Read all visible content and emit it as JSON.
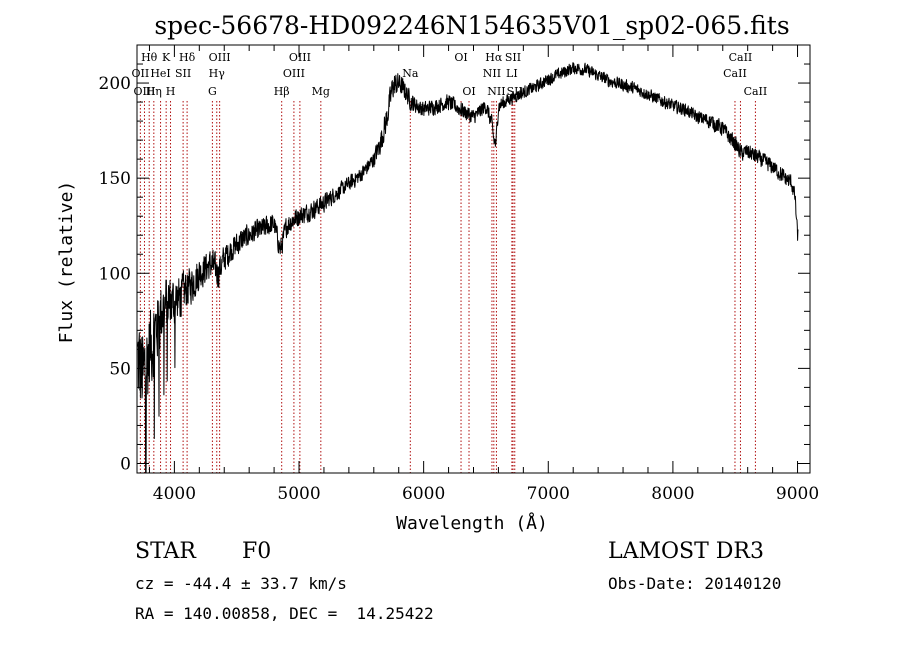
{
  "chart_data": {
    "type": "line",
    "title": "spec-56678-HD092246N154635V01_sp02-065.fits",
    "xlabel": "Wavelength (Å)",
    "ylabel": "Flux (relative)",
    "xlim": [
      3700,
      9100
    ],
    "ylim": [
      -5,
      220
    ],
    "x_ticks": [
      4000,
      5000,
      6000,
      7000,
      8000,
      9000
    ],
    "y_ticks": [
      0,
      50,
      100,
      150,
      200
    ],
    "x_tick_labels": [
      "4000",
      "5000",
      "6000",
      "7000",
      "8000",
      "9000"
    ],
    "y_tick_labels": [
      "0",
      "50",
      "100",
      "150",
      "200"
    ],
    "series": [
      {
        "name": "flux",
        "x": [
          3700,
          3750,
          3800,
          3850,
          3900,
          3950,
          4000,
          4050,
          4100,
          4150,
          4200,
          4250,
          4300,
          4350,
          4400,
          4450,
          4500,
          4550,
          4600,
          4650,
          4700,
          4750,
          4800,
          4850,
          4900,
          4950,
          5000,
          5100,
          5200,
          5300,
          5400,
          5500,
          5600,
          5650,
          5700,
          5750,
          5800,
          5850,
          5900,
          5950,
          6000,
          6100,
          6200,
          6300,
          6400,
          6500,
          6550,
          6563,
          6580,
          6600,
          6700,
          6800,
          6900,
          7000,
          7100,
          7200,
          7300,
          7400,
          7500,
          7600,
          7700,
          7800,
          7900,
          8000,
          8100,
          8200,
          8300,
          8400,
          8500,
          8550,
          8600,
          8650,
          8700,
          8800,
          8900,
          8950,
          8980,
          9000
        ],
        "values": [
          55,
          45,
          60,
          70,
          80,
          85,
          85,
          88,
          92,
          95,
          100,
          103,
          105,
          100,
          108,
          112,
          115,
          118,
          120,
          122,
          123,
          125,
          126,
          112,
          125,
          128,
          130,
          133,
          137,
          142,
          147,
          152,
          160,
          168,
          180,
          198,
          200,
          196,
          190,
          188,
          186,
          188,
          190,
          186,
          182,
          188,
          178,
          170,
          168,
          188,
          192,
          195,
          198,
          202,
          205,
          208,
          207,
          204,
          201,
          199,
          197,
          194,
          191,
          188,
          186,
          182,
          180,
          176,
          168,
          163,
          164,
          162,
          160,
          156,
          150,
          148,
          140,
          120
        ],
        "noise": [
          32,
          32,
          28,
          24,
          22,
          18,
          16,
          14,
          12,
          12,
          11,
          10,
          10,
          10,
          9,
          8,
          8,
          8,
          7,
          7,
          7,
          7,
          7,
          7,
          7,
          7,
          6,
          6,
          6,
          5,
          5,
          5,
          5,
          7,
          9,
          8,
          7,
          6,
          6,
          5,
          5,
          5,
          5,
          5,
          5,
          5,
          5,
          5,
          5,
          5,
          4,
          4,
          4,
          4,
          4,
          4,
          4,
          4,
          4,
          4,
          4,
          4,
          4,
          4,
          4,
          4,
          5,
          5,
          5,
          5,
          5,
          5,
          5,
          5,
          5,
          5,
          5,
          5
        ]
      }
    ],
    "line_markers": [
      {
        "label": "Hθ",
        "wavelength": 3798,
        "row": 0
      },
      {
        "label": "OII",
        "wavelength": 3727,
        "row": 1
      },
      {
        "label": "OIII",
        "wavelength": 3760,
        "row": 2
      },
      {
        "label": "K",
        "wavelength": 3934,
        "row": 0
      },
      {
        "label": "HeI",
        "wavelength": 3889,
        "row": 1
      },
      {
        "label": "Hη",
        "wavelength": 3835,
        "row": 2
      },
      {
        "label": "Hδ",
        "wavelength": 4102,
        "row": 0
      },
      {
        "label": "SII",
        "wavelength": 4070,
        "row": 1
      },
      {
        "label": "H",
        "wavelength": 3969,
        "row": 2
      },
      {
        "label": "OIII",
        "wavelength": 4363,
        "row": 0
      },
      {
        "label": "Hγ",
        "wavelength": 4340,
        "row": 1
      },
      {
        "label": "G",
        "wavelength": 4305,
        "row": 2
      },
      {
        "label": "OIII",
        "wavelength": 5007,
        "row": 0
      },
      {
        "label": "OIII",
        "wavelength": 4959,
        "row": 1
      },
      {
        "label": "Hβ",
        "wavelength": 4861,
        "row": 2
      },
      {
        "label": "Mg",
        "wavelength": 5175,
        "row": 2
      },
      {
        "label": "Na",
        "wavelength": 5893,
        "row": 1
      },
      {
        "label": "OI",
        "wavelength": 6300,
        "row": 0
      },
      {
        "label": "OI",
        "wavelength": 6364,
        "row": 2
      },
      {
        "label": "Hα",
        "wavelength": 6563,
        "row": 0
      },
      {
        "label": "SII",
        "wavelength": 6717,
        "row": 0
      },
      {
        "label": "NII",
        "wavelength": 6548,
        "row": 1
      },
      {
        "label": "LI",
        "wavelength": 6708,
        "row": 1
      },
      {
        "label": "NII",
        "wavelength": 6584,
        "row": 2
      },
      {
        "label": "SII",
        "wavelength": 6731,
        "row": 2
      },
      {
        "label": "CaII",
        "wavelength": 8542,
        "row": 0
      },
      {
        "label": "CaII",
        "wavelength": 8498,
        "row": 1
      },
      {
        "label": "CaII",
        "wavelength": 8662,
        "row": 2
      }
    ]
  },
  "info": {
    "object_class": "STAR",
    "subclass": "F0",
    "survey": "LAMOST DR3",
    "redshift_line": "cz = -44.4 ± 33.7 km/s",
    "obs_date_line": "Obs-Date: 20140120",
    "coords_line": "RA = 140.00858, DEC =  14.25422"
  },
  "colors": {
    "spectrum": "#000000",
    "marker": "#b01010",
    "axis": "#000000",
    "background": "#ffffff"
  }
}
